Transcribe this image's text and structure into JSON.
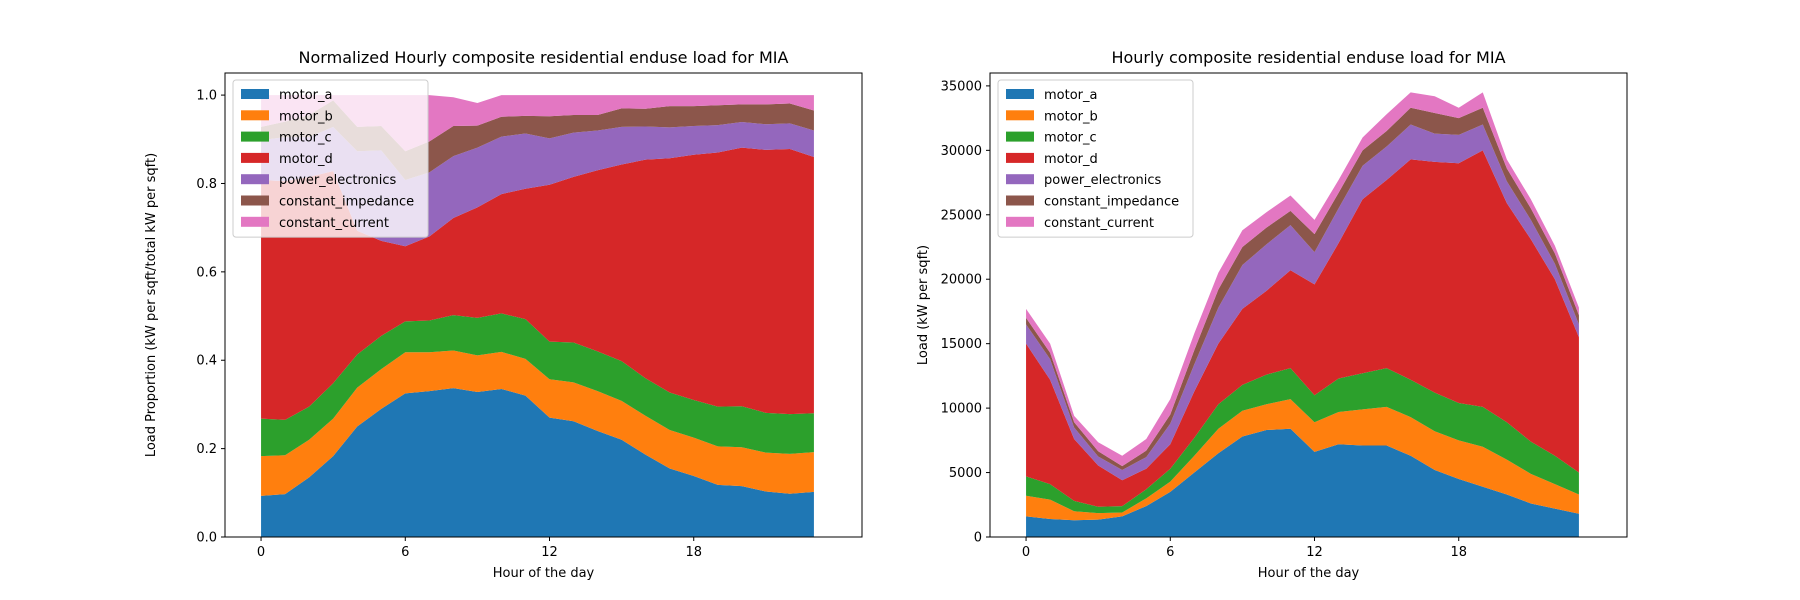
{
  "chart_data": [
    {
      "type": "area",
      "title": "Normalized Hourly composite residential enduse load for MIA",
      "xlabel": "Hour of the day",
      "ylabel": "Load Proportion (kW per sqft/total kW per sqft)",
      "xlim": [
        -1.5,
        25
      ],
      "ylim": [
        0,
        1.05
      ],
      "x_ticks": [
        0,
        6,
        12,
        18
      ],
      "y_ticks": [
        0.0,
        0.2,
        0.4,
        0.6,
        0.8,
        1.0
      ],
      "y_tick_labels": [
        "0.0",
        "0.2",
        "0.4",
        "0.6",
        "0.8",
        "1.0"
      ],
      "legend_position": "top-left",
      "grid": false,
      "x": [
        0,
        1,
        2,
        3,
        4,
        5,
        6,
        7,
        8,
        9,
        10,
        11,
        12,
        13,
        14,
        15,
        16,
        17,
        18,
        19,
        20,
        21,
        22,
        23
      ],
      "series": [
        {
          "name": "motor_a",
          "color": "#1f77b4",
          "values": [
            0.093,
            0.097,
            0.135,
            0.183,
            0.25,
            0.29,
            0.325,
            0.33,
            0.337,
            0.328,
            0.335,
            0.32,
            0.27,
            0.262,
            0.24,
            0.22,
            0.186,
            0.155,
            0.138,
            0.118,
            0.115,
            0.103,
            0.098,
            0.102
          ]
        },
        {
          "name": "motor_b",
          "color": "#ff7f0e",
          "values": [
            0.09,
            0.088,
            0.085,
            0.085,
            0.088,
            0.09,
            0.093,
            0.088,
            0.085,
            0.083,
            0.084,
            0.083,
            0.087,
            0.088,
            0.09,
            0.088,
            0.088,
            0.087,
            0.087,
            0.087,
            0.088,
            0.088,
            0.09,
            0.09
          ]
        },
        {
          "name": "motor_c",
          "color": "#2ca02c",
          "values": [
            0.085,
            0.08,
            0.075,
            0.08,
            0.075,
            0.075,
            0.07,
            0.072,
            0.08,
            0.085,
            0.087,
            0.09,
            0.085,
            0.09,
            0.09,
            0.09,
            0.085,
            0.085,
            0.085,
            0.09,
            0.093,
            0.09,
            0.09,
            0.088
          ]
        },
        {
          "name": "motor_d",
          "color": "#d62728",
          "values": [
            0.54,
            0.54,
            0.52,
            0.48,
            0.28,
            0.215,
            0.17,
            0.19,
            0.22,
            0.25,
            0.27,
            0.295,
            0.355,
            0.375,
            0.41,
            0.445,
            0.495,
            0.53,
            0.555,
            0.575,
            0.585,
            0.595,
            0.6,
            0.58
          ]
        },
        {
          "name": "power_electronics",
          "color": "#9467bd",
          "values": [
            0.09,
            0.1,
            0.09,
            0.1,
            0.18,
            0.205,
            0.15,
            0.145,
            0.14,
            0.135,
            0.13,
            0.125,
            0.105,
            0.1,
            0.09,
            0.085,
            0.075,
            0.07,
            0.065,
            0.062,
            0.058,
            0.058,
            0.058,
            0.06
          ]
        },
        {
          "name": "constant_impedance",
          "color": "#8c564b",
          "values": [
            0.03,
            0.035,
            0.05,
            0.06,
            0.055,
            0.055,
            0.065,
            0.07,
            0.068,
            0.05,
            0.045,
            0.04,
            0.05,
            0.04,
            0.035,
            0.042,
            0.04,
            0.048,
            0.045,
            0.045,
            0.04,
            0.045,
            0.045,
            0.045
          ]
        },
        {
          "name": "constant_current",
          "color": "#e377c2",
          "values": [
            0.072,
            0.06,
            0.045,
            0.012,
            0.072,
            0.07,
            0.127,
            0.105,
            0.065,
            0.051,
            0.049,
            0.047,
            0.048,
            0.045,
            0.045,
            0.03,
            0.031,
            0.025,
            0.025,
            0.023,
            0.021,
            0.021,
            0.019,
            0.035
          ]
        }
      ]
    },
    {
      "type": "area",
      "title": "Hourly composite residential enduse load for MIA",
      "xlabel": "Hour of the day",
      "ylabel": "Load (kW per sqft)",
      "xlim": [
        -1.5,
        25
      ],
      "ylim": [
        0,
        36000
      ],
      "x_ticks": [
        0,
        6,
        12,
        18
      ],
      "y_ticks": [
        0,
        5000,
        10000,
        15000,
        20000,
        25000,
        30000,
        35000
      ],
      "y_tick_labels": [
        "0",
        "5000",
        "10000",
        "15000",
        "20000",
        "25000",
        "30000",
        "35000"
      ],
      "legend_position": "top-left",
      "grid": false,
      "x": [
        0,
        1,
        2,
        3,
        4,
        5,
        6,
        7,
        8,
        9,
        10,
        11,
        12,
        13,
        14,
        15,
        16,
        17,
        18,
        19,
        20,
        21,
        22,
        23
      ],
      "series": [
        {
          "name": "motor_a",
          "color": "#1f77b4",
          "values": [
            1600,
            1400,
            1300,
            1350,
            1600,
            2400,
            3500,
            5000,
            6500,
            7800,
            8300,
            8400,
            6600,
            7200,
            7100,
            7100,
            6300,
            5200,
            4500,
            3900,
            3300,
            2600,
            2200,
            1800
          ]
        },
        {
          "name": "motor_b",
          "color": "#ff7f0e",
          "values": [
            1600,
            1500,
            700,
            500,
            300,
            600,
            800,
            1300,
            1900,
            2000,
            2000,
            2300,
            2300,
            2500,
            2800,
            3000,
            3000,
            3000,
            3000,
            3100,
            2700,
            2300,
            1900,
            1500
          ]
        },
        {
          "name": "motor_c",
          "color": "#2ca02c",
          "values": [
            1500,
            1200,
            800,
            500,
            500,
            700,
            1000,
            1400,
            1900,
            2000,
            2300,
            2400,
            2100,
            2600,
            2800,
            3000,
            2900,
            3000,
            2900,
            3100,
            2900,
            2500,
            2200,
            1700
          ]
        },
        {
          "name": "motor_d",
          "color": "#d62728",
          "values": [
            10300,
            8100,
            4800,
            3200,
            2000,
            1600,
            1900,
            3600,
            4700,
            5900,
            6500,
            7600,
            8600,
            10500,
            13500,
            14600,
            17100,
            17900,
            18600,
            19900,
            17000,
            15700,
            13700,
            10500
          ]
        },
        {
          "name": "power_electronics",
          "color": "#9467bd",
          "values": [
            1500,
            1600,
            900,
            700,
            800,
            900,
            1600,
            2100,
            2800,
            3400,
            3600,
            3500,
            2500,
            2700,
            2600,
            2600,
            2700,
            2200,
            2200,
            2000,
            1700,
            1500,
            1200,
            1000
          ]
        },
        {
          "name": "constant_impedance",
          "color": "#8c564b",
          "values": [
            500,
            500,
            400,
            400,
            300,
            500,
            700,
            1100,
            1400,
            1400,
            1300,
            1100,
            1400,
            1200,
            1200,
            1200,
            1300,
            1600,
            1300,
            1300,
            1000,
            900,
            800,
            700
          ]
        },
        {
          "name": "constant_current",
          "color": "#e377c2",
          "values": [
            700,
            700,
            500,
            700,
            800,
            900,
            1200,
            1300,
            1300,
            1300,
            1200,
            1200,
            1100,
            1000,
            1000,
            1300,
            1200,
            1300,
            800,
            1200,
            700,
            700,
            600,
            600
          ]
        }
      ]
    }
  ]
}
